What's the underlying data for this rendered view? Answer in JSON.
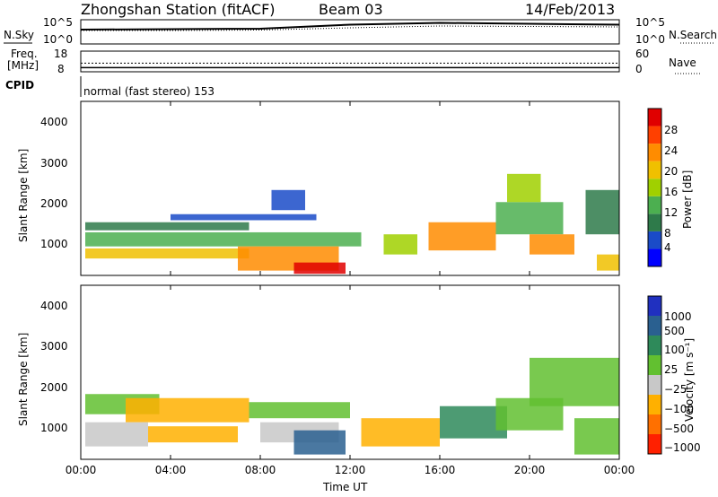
{
  "header": {
    "station": "Zhongshan Station (fitACF)",
    "beam": "Beam 03",
    "date": "14/Feb/2013"
  },
  "noise_panel": {
    "left_label": "N.Sky",
    "right_label": "N.Search",
    "left_ticks": [
      "10^5",
      "10^0"
    ],
    "right_ticks": [
      "10^5",
      "10^0"
    ]
  },
  "freq_panel": {
    "left_label_1": "Freq.",
    "left_label_2": "[MHz]",
    "right_label": "Nave",
    "left_ticks": [
      "18",
      "8"
    ],
    "right_ticks": [
      "60",
      "0"
    ]
  },
  "cpid": {
    "label": "CPID",
    "mode": "normal (fast stereo) 153"
  },
  "x_axis": {
    "label": "Time UT",
    "ticks": [
      "00:00",
      "04:00",
      "08:00",
      "12:00",
      "16:00",
      "20:00",
      "00:00"
    ]
  },
  "power_panel": {
    "ylabel": "Slant Range [km]",
    "yticks": [
      "4000",
      "3000",
      "2000",
      "1000"
    ],
    "colorbar_label": "Power [dB]",
    "colorbar_ticks": [
      "28",
      "24",
      "20",
      "16",
      "12",
      "8",
      "4"
    ],
    "colors": [
      "#0000ff",
      "#1a4bc8",
      "#2e7a4a",
      "#4caf50",
      "#a0d000",
      "#f0c000",
      "#ff8c00",
      "#ff4000",
      "#e00000"
    ]
  },
  "velocity_panel": {
    "ylabel": "Slant Range [km]",
    "yticks": [
      "4000",
      "3000",
      "2000",
      "1000"
    ],
    "colorbar_label": "Velocity [m s⁻¹]",
    "colorbar_ticks": [
      "1000",
      "500",
      "100",
      "25",
      "−25",
      "−100",
      "−500",
      "−1000"
    ],
    "colors": [
      "#2030c0",
      "#2a6090",
      "#2e8a5a",
      "#62c030",
      "#c8c8c8",
      "#ffb000",
      "#ff7000",
      "#ff2000"
    ]
  },
  "chart_data": [
    {
      "type": "line",
      "title": "N.Sky / N.Search",
      "xlabel": "Time UT",
      "x_range": [
        "00:00",
        "24:00"
      ],
      "series": [
        {
          "name": "N.Sky",
          "x": [
            "00:00",
            "04:00",
            "08:00",
            "12:00",
            "16:00",
            "20:00",
            "24:00"
          ],
          "values": [
            3.2,
            3.3,
            3.4,
            4.3,
            4.7,
            4.5,
            4.3
          ]
        },
        {
          "name": "N.Search",
          "x": [
            "00:00",
            "04:00",
            "08:00",
            "12:00",
            "16:00",
            "20:00",
            "24:00"
          ],
          "values": [
            3.0,
            3.0,
            3.1,
            3.6,
            4.0,
            3.9,
            3.8
          ]
        }
      ],
      "ylim": [
        0,
        5
      ]
    },
    {
      "type": "line",
      "title": "Freq / Nave",
      "xlabel": "Time UT",
      "series": [
        {
          "name": "Freq. [MHz]",
          "x": [
            "00:00",
            "12:00",
            "24:00"
          ],
          "values": [
            10,
            10,
            10
          ]
        },
        {
          "name": "Nave",
          "x": [
            "00:00",
            "12:00",
            "24:00"
          ],
          "values": [
            25,
            25,
            25
          ]
        }
      ],
      "ylim_left": [
        8,
        18
      ],
      "ylim_right": [
        0,
        60
      ]
    },
    {
      "type": "heatmap",
      "title": "Power [dB]",
      "xlabel": "Time UT",
      "ylabel": "Slant Range [km]",
      "x_range_hours": [
        0,
        24
      ],
      "ylim": [
        180,
        4500
      ],
      "value_range": [
        0,
        30
      ],
      "cells": [
        {
          "t0": 0.2,
          "t1": 7.5,
          "r0": 1300,
          "r1": 1500,
          "v": 8
        },
        {
          "t0": 4.0,
          "t1": 10.5,
          "r0": 1550,
          "r1": 1700,
          "v": 6
        },
        {
          "t0": 0.2,
          "t1": 12.5,
          "r0": 900,
          "r1": 1250,
          "v": 12
        },
        {
          "t0": 0.2,
          "t1": 7.5,
          "r0": 600,
          "r1": 850,
          "v": 18
        },
        {
          "t0": 7.0,
          "t1": 11.5,
          "r0": 300,
          "r1": 900,
          "v": 20
        },
        {
          "t0": 9.5,
          "t1": 11.8,
          "r0": 220,
          "r1": 500,
          "v": 28
        },
        {
          "t0": 8.5,
          "t1": 10.0,
          "r0": 1800,
          "r1": 2300,
          "v": 6
        },
        {
          "t0": 13.5,
          "t1": 15.0,
          "r0": 700,
          "r1": 1200,
          "v": 14
        },
        {
          "t0": 15.5,
          "t1": 18.5,
          "r0": 800,
          "r1": 1500,
          "v": 20
        },
        {
          "t0": 18.5,
          "t1": 21.5,
          "r0": 1200,
          "r1": 2000,
          "v": 12
        },
        {
          "t0": 19.0,
          "t1": 20.5,
          "r0": 2000,
          "r1": 2700,
          "v": 14
        },
        {
          "t0": 20.0,
          "t1": 22.0,
          "r0": 700,
          "r1": 1200,
          "v": 22
        },
        {
          "t0": 22.5,
          "t1": 24.0,
          "r0": 1200,
          "r1": 2300,
          "v": 8
        },
        {
          "t0": 23.0,
          "t1": 24.0,
          "r0": 300,
          "r1": 700,
          "v": 18
        }
      ]
    },
    {
      "type": "heatmap",
      "title": "Velocity [m s⁻¹]",
      "xlabel": "Time UT",
      "ylabel": "Slant Range [km]",
      "x_range_hours": [
        0,
        24
      ],
      "ylim": [
        180,
        4500
      ],
      "value_range": [
        -1000,
        1000
      ],
      "cells": [
        {
          "t0": 0.2,
          "t1": 3.5,
          "r0": 1300,
          "r1": 1800,
          "v": 0
        },
        {
          "t0": 2.0,
          "t1": 7.5,
          "r0": 1100,
          "r1": 1700,
          "v": -300
        },
        {
          "t0": 0.2,
          "t1": 3.0,
          "r0": 500,
          "r1": 1100,
          "v": -200
        },
        {
          "t0": 3.0,
          "t1": 7.0,
          "r0": 600,
          "r1": 1000,
          "v": -400
        },
        {
          "t0": 7.5,
          "t1": 12.0,
          "r0": 1200,
          "r1": 1600,
          "v": 0
        },
        {
          "t0": 8.0,
          "t1": 11.5,
          "r0": 600,
          "r1": 1100,
          "v": -150
        },
        {
          "t0": 9.5,
          "t1": 11.8,
          "r0": 300,
          "r1": 900,
          "v": 700
        },
        {
          "t0": 12.5,
          "t1": 16.0,
          "r0": 500,
          "r1": 1200,
          "v": -500
        },
        {
          "t0": 16.0,
          "t1": 19.0,
          "r0": 700,
          "r1": 1500,
          "v": 400
        },
        {
          "t0": 18.5,
          "t1": 21.5,
          "r0": 900,
          "r1": 1700,
          "v": 150
        },
        {
          "t0": 20.0,
          "t1": 24.0,
          "r0": 1500,
          "r1": 2700,
          "v": 0
        },
        {
          "t0": 22.0,
          "t1": 24.0,
          "r0": 300,
          "r1": 1200,
          "v": 0
        }
      ]
    }
  ]
}
